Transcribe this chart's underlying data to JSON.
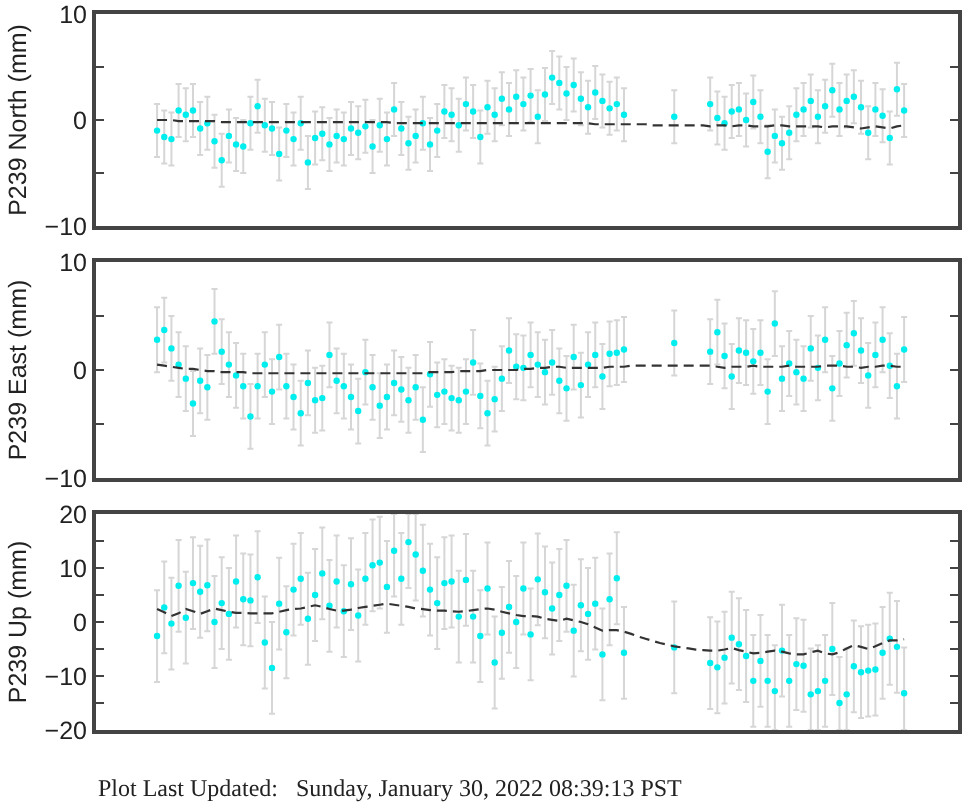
{
  "chart_data": [
    {
      "type": "scatter",
      "ylabel": "P239 North (mm)",
      "tick_labels": "y",
      "ylim": [
        -10,
        10
      ],
      "yticks": [
        -10,
        {
          "value": -5,
          "label": null
        },
        0,
        {
          "value": 5,
          "label": null
        },
        10
      ],
      "categories": [
        null,
        null,
        null,
        null,
        null,
        null,
        null,
        null,
        null,
        null,
        null,
        null,
        null,
        null,
        null,
        null,
        null,
        null,
        null,
        null,
        null,
        null,
        null,
        null,
        null,
        null,
        null,
        null,
        null,
        null,
        null,
        null,
        null,
        null,
        null,
        null,
        null,
        null,
        null,
        null,
        null,
        null,
        null,
        null,
        null,
        null,
        null,
        null,
        null,
        null,
        null,
        null,
        null,
        null,
        null,
        null,
        null,
        null,
        null,
        null,
        null,
        null,
        null,
        null,
        null,
        null,
        null,
        null,
        null,
        null,
        null,
        null,
        null,
        null,
        null,
        null,
        null,
        null,
        null,
        null,
        null,
        null,
        null,
        null,
        null,
        null,
        null,
        null,
        null,
        null,
        null,
        null,
        null,
        null,
        null,
        null,
        null,
        null,
        null,
        null,
        null,
        null,
        null,
        null,
        null,
        null,
        null,
        null,
        null,
        null,
        null,
        null,
        null,
        null,
        null,
        null,
        null,
        null,
        null,
        null
      ],
      "series": [
        {
          "color": "#00eeee",
          "marker": "circle",
          "values": [
            null,
            null,
            null,
            null,
            null,
            null,
            null,
            null,
            -1.0,
            -1.6,
            -1.8,
            0.9,
            0.5,
            0.9,
            -0.8,
            -0.3,
            -2.0,
            -3.8,
            -1.5,
            -2.3,
            -2.5,
            -0.3,
            1.3,
            -0.5,
            -0.8,
            -3.2,
            -1.0,
            -1.8,
            -0.3,
            -4.0,
            -1.7,
            -1.3,
            -2.3,
            -1.5,
            -1.8,
            -0.8,
            -1.2,
            -0.6,
            -2.5,
            -0.5,
            -1.8,
            1.0,
            -0.8,
            -2.2,
            -1.5,
            -0.3,
            -2.3,
            -1.0,
            0.8,
            0.5,
            -0.5,
            1.5,
            0.8,
            -1.6,
            1.2,
            0.5,
            2.0,
            1.0,
            2.2,
            1.5,
            2.3,
            0.3,
            2.4,
            4.0,
            3.5,
            2.5,
            3.3,
            2.0,
            1.2,
            2.6,
            1.8,
            1.1,
            1.5,
            0.5,
            null,
            null,
            null,
            null,
            null,
            null,
            0.3,
            null,
            null,
            null,
            null,
            1.5,
            0.2,
            -0.3,
            0.8,
            1.0,
            0.0,
            1.7,
            0.3,
            -3.0,
            -1.5,
            -2.2,
            -1.2,
            0.5,
            1.0,
            1.8,
            0.3,
            1.3,
            2.8,
            1.0,
            1.8,
            2.2,
            1.2,
            -1.2,
            1.0,
            0.4,
            -1.7,
            2.9,
            0.9,
            null,
            null,
            null,
            null,
            null,
            null,
            null
          ],
          "errors": [
            null,
            null,
            null,
            null,
            null,
            null,
            null,
            null,
            2.5,
            2.5,
            2.5,
            2.5,
            2.5,
            2.5,
            2.5,
            2.5,
            2.5,
            2.5,
            2.5,
            2.5,
            2.5,
            2.5,
            2.5,
            2.5,
            2.5,
            2.5,
            2.5,
            2.5,
            2.5,
            2.5,
            2.5,
            2.5,
            2.5,
            2.5,
            2.5,
            2.5,
            2.5,
            2.5,
            2.5,
            2.5,
            2.5,
            2.5,
            2.5,
            2.5,
            2.5,
            2.5,
            2.5,
            2.5,
            2.5,
            2.5,
            2.5,
            2.5,
            2.5,
            2.5,
            2.5,
            2.5,
            2.5,
            2.5,
            2.5,
            2.5,
            2.5,
            2.5,
            2.5,
            2.5,
            2.5,
            2.5,
            2.5,
            2.5,
            2.5,
            2.5,
            2.5,
            2.5,
            2.5,
            2.5,
            null,
            null,
            null,
            null,
            null,
            null,
            2.5,
            null,
            null,
            null,
            null,
            2.5,
            2.5,
            2.5,
            2.5,
            2.5,
            2.5,
            2.5,
            2.5,
            2.5,
            2.5,
            2.5,
            2.5,
            2.5,
            2.5,
            2.5,
            2.5,
            2.5,
            2.5,
            2.5,
            2.5,
            2.5,
            2.5,
            2.5,
            2.5,
            2.5,
            2.5,
            2.5,
            2.5,
            null,
            null,
            null,
            null,
            null,
            null,
            null
          ]
        },
        {
          "type": "line",
          "color": "#333333",
          "marker": "none",
          "line_style": "dashed",
          "values": [
            null,
            null,
            null,
            null,
            null,
            null,
            null,
            null,
            0.0,
            0.0,
            0.0,
            -0.1,
            -0.1,
            -0.1,
            -0.1,
            -0.1,
            -0.1,
            -0.2,
            -0.2,
            -0.2,
            -0.2,
            -0.2,
            -0.2,
            -0.2,
            -0.2,
            -0.2,
            -0.2,
            -0.2,
            -0.2,
            -0.2,
            -0.2,
            -0.2,
            -0.2,
            -0.2,
            -0.2,
            -0.2,
            -0.2,
            -0.2,
            -0.2,
            -0.2,
            -0.2,
            -0.3,
            -0.3,
            -0.3,
            -0.3,
            -0.3,
            -0.3,
            -0.3,
            -0.3,
            -0.3,
            -0.3,
            -0.3,
            -0.3,
            -0.3,
            -0.3,
            -0.3,
            -0.3,
            -0.3,
            -0.3,
            -0.3,
            -0.3,
            -0.3,
            -0.3,
            -0.3,
            -0.3,
            -0.3,
            -0.3,
            -0.3,
            -0.3,
            -0.4,
            -0.4,
            -0.4,
            -0.4,
            -0.4,
            -0.4,
            -0.4,
            -0.4,
            -0.5,
            -0.5,
            -0.5,
            -0.5,
            -0.5,
            -0.5,
            -0.5,
            -0.5,
            -0.6,
            -0.5,
            -0.5,
            -0.6,
            -0.5,
            -0.5,
            -0.6,
            -0.6,
            -0.6,
            -0.5,
            -0.5,
            -0.6,
            -0.6,
            -0.6,
            -0.6,
            -0.6,
            -0.7,
            -0.6,
            -0.6,
            -0.6,
            -0.7,
            -0.8,
            -0.7,
            -0.6,
            -0.7,
            -0.8,
            -0.6,
            -0.5,
            null,
            null,
            null,
            null,
            null,
            null,
            null
          ]
        }
      ]
    },
    {
      "type": "scatter",
      "ylabel": "P239 East (mm)",
      "tick_labels": "y",
      "ylim": [
        -10,
        10
      ],
      "yticks": [
        -10,
        {
          "value": -5,
          "label": null
        },
        0,
        {
          "value": 5,
          "label": null
        },
        10
      ],
      "categories": [
        null,
        null,
        null,
        null,
        null,
        null,
        null,
        null,
        null,
        null,
        null,
        null,
        null,
        null,
        null,
        null,
        null,
        null,
        null,
        null,
        null,
        null,
        null,
        null,
        null,
        null,
        null,
        null,
        null,
        null,
        null,
        null,
        null,
        null,
        null,
        null,
        null,
        null,
        null,
        null,
        null,
        null,
        null,
        null,
        null,
        null,
        null,
        null,
        null,
        null,
        null,
        null,
        null,
        null,
        null,
        null,
        null,
        null,
        null,
        null,
        null,
        null,
        null,
        null,
        null,
        null,
        null,
        null,
        null,
        null,
        null,
        null,
        null,
        null,
        null,
        null,
        null,
        null,
        null,
        null,
        null,
        null,
        null,
        null,
        null,
        null,
        null,
        null,
        null,
        null,
        null,
        null,
        null,
        null,
        null,
        null,
        null,
        null,
        null,
        null,
        null,
        null,
        null,
        null,
        null,
        null,
        null,
        null,
        null,
        null,
        null,
        null,
        null,
        null,
        null,
        null,
        null,
        null,
        null,
        null
      ],
      "series": [
        {
          "color": "#00eeee",
          "marker": "circle",
          "values": [
            null,
            null,
            null,
            null,
            null,
            null,
            null,
            null,
            2.8,
            3.7,
            2.0,
            0.5,
            -0.8,
            -3.1,
            -1.0,
            -1.6,
            4.5,
            1.7,
            0.5,
            -0.5,
            -1.5,
            -4.3,
            -1.5,
            0.5,
            -2.0,
            1.2,
            -1.5,
            -2.5,
            -4.0,
            -1.2,
            -2.8,
            -2.6,
            1.4,
            -1.0,
            -1.5,
            -2.5,
            -3.8,
            -0.2,
            -1.6,
            -3.3,
            -2.5,
            -1.2,
            -1.8,
            -2.8,
            -1.6,
            -4.6,
            -0.4,
            -2.3,
            -2.0,
            -2.6,
            -2.8,
            -2.0,
            0.7,
            -2.4,
            -4.0,
            -2.7,
            -0.8,
            1.8,
            0.3,
            0.2,
            1.4,
            0.5,
            -0.2,
            0.7,
            -1.0,
            -1.7,
            1.2,
            -1.4,
            0.5,
            1.4,
            -0.6,
            1.5,
            1.6,
            1.9,
            null,
            null,
            null,
            null,
            null,
            null,
            2.5,
            null,
            null,
            null,
            null,
            1.7,
            3.5,
            1.3,
            -0.6,
            1.8,
            1.6,
            0.8,
            1.6,
            -2.0,
            4.3,
            -0.8,
            0.6,
            -0.2,
            -0.8,
            2.0,
            0.2,
            2.8,
            -1.7,
            0.6,
            2.3,
            3.4,
            1.8,
            -0.5,
            1.4,
            2.8,
            0.4,
            -1.5,
            1.9,
            null,
            null,
            null,
            null,
            null,
            null,
            null
          ],
          "errors": [
            null,
            null,
            null,
            null,
            null,
            null,
            null,
            null,
            3,
            3,
            3,
            3,
            3,
            3,
            3,
            3,
            3,
            3,
            3,
            3,
            3,
            3,
            3,
            3,
            3,
            3,
            3,
            3,
            3,
            3,
            3,
            3,
            3,
            3,
            3,
            3,
            3,
            3,
            3,
            3,
            3,
            3,
            3,
            3,
            3,
            3,
            3,
            3,
            3,
            3,
            3,
            3,
            3,
            3,
            3,
            3,
            3,
            3,
            3,
            3,
            3,
            3,
            3,
            3,
            3,
            3,
            3,
            3,
            3,
            3,
            3,
            3,
            3,
            3,
            null,
            null,
            null,
            null,
            null,
            null,
            3,
            null,
            null,
            null,
            null,
            3,
            3,
            3,
            3,
            3,
            3,
            3,
            3,
            3,
            3,
            3,
            3,
            3,
            3,
            3,
            3,
            3,
            3,
            3,
            3,
            3,
            3,
            3,
            3,
            3,
            3,
            3,
            3,
            null,
            null,
            null,
            null,
            null,
            null,
            null
          ]
        },
        {
          "type": "line",
          "color": "#333333",
          "marker": "none",
          "line_style": "dashed",
          "values": [
            null,
            null,
            null,
            null,
            null,
            null,
            null,
            null,
            0.5,
            0.4,
            0.3,
            0.2,
            0.1,
            0.1,
            0.0,
            -0.1,
            -0.1,
            -0.2,
            -0.2,
            -0.2,
            -0.2,
            -0.3,
            -0.3,
            -0.3,
            -0.3,
            -0.3,
            -0.3,
            -0.3,
            -0.3,
            -0.3,
            -0.3,
            -0.3,
            -0.3,
            -0.3,
            -0.3,
            -0.3,
            -0.3,
            -0.3,
            -0.3,
            -0.3,
            -0.3,
            -0.3,
            -0.3,
            -0.3,
            -0.3,
            -0.3,
            -0.2,
            -0.2,
            -0.2,
            -0.2,
            -0.1,
            -0.1,
            -0.1,
            -0.1,
            0.0,
            0.0,
            0.0,
            0.0,
            0.0,
            0.1,
            0.1,
            0.2,
            0.2,
            0.3,
            0.3,
            0.2,
            0.2,
            0.2,
            0.2,
            0.2,
            0.2,
            0.3,
            0.3,
            0.3,
            0.4,
            0.4,
            0.4,
            0.4,
            0.4,
            0.4,
            0.4,
            0.4,
            0.4,
            0.4,
            0.4,
            0.4,
            0.3,
            0.2,
            0.3,
            0.3,
            0.3,
            0.4,
            0.3,
            0.3,
            0.3,
            0.3,
            0.4,
            0.3,
            0.3,
            0.3,
            0.3,
            0.4,
            0.4,
            0.4,
            0.3,
            0.3,
            0.2,
            0.3,
            0.3,
            0.4,
            0.4,
            0.3,
            0.3,
            null,
            null,
            null,
            null,
            null,
            null,
            null
          ]
        }
      ]
    },
    {
      "type": "scatter",
      "ylabel": "P239 Up (mm)",
      "tick_labels": "y",
      "ylim": [
        -20,
        20
      ],
      "yticks": [
        -20,
        {
          "value": -15,
          "label": null
        },
        -10,
        {
          "value": -5,
          "label": null
        },
        0,
        {
          "value": 5,
          "label": null
        },
        10,
        {
          "value": 15,
          "label": null
        },
        20
      ],
      "annotations": [
        "Plot Last Updated:   Sunday, January 30, 2022 08:39:13 PST"
      ],
      "categories": [
        null,
        null,
        null,
        null,
        null,
        null,
        null,
        null,
        null,
        null,
        null,
        null,
        null,
        null,
        null,
        null,
        null,
        null,
        null,
        null,
        null,
        null,
        null,
        null,
        null,
        null,
        null,
        null,
        null,
        null,
        null,
        null,
        null,
        null,
        null,
        null,
        null,
        null,
        null,
        null,
        null,
        null,
        null,
        null,
        null,
        null,
        null,
        null,
        null,
        null,
        null,
        null,
        null,
        null,
        null,
        null,
        null,
        null,
        null,
        null,
        null,
        null,
        null,
        null,
        null,
        null,
        null,
        null,
        null,
        null,
        null,
        null,
        null,
        null,
        null,
        null,
        null,
        null,
        null,
        null,
        null,
        null,
        null,
        null,
        null,
        null,
        null,
        null,
        null,
        null,
        null,
        null,
        null,
        null,
        null,
        null,
        null,
        null,
        null,
        null,
        null,
        null,
        null,
        null,
        null,
        null,
        null,
        null,
        null,
        null,
        null,
        null,
        null,
        null,
        null,
        null,
        null,
        null,
        null,
        null
      ],
      "series": [
        {
          "color": "#00eeee",
          "marker": "circle",
          "values": [
            null,
            null,
            null,
            null,
            null,
            null,
            null,
            null,
            -2.6,
            2.7,
            -0.3,
            6.7,
            0.8,
            7.2,
            5.6,
            6.8,
            0.0,
            3.5,
            1.5,
            7.5,
            4.2,
            4.0,
            8.3,
            -3.8,
            -8.5,
            3.4,
            -1.9,
            6.0,
            8.0,
            0.6,
            5.0,
            9.0,
            3.0,
            7.5,
            2.0,
            7.0,
            1.2,
            8.0,
            10.5,
            11.0,
            6.5,
            13.2,
            8.0,
            14.8,
            12.5,
            9.5,
            6.0,
            3.5,
            7.2,
            7.5,
            1.0,
            7.8,
            1.0,
            -2.6,
            6.2,
            -7.5,
            -2.0,
            2.8,
            0.0,
            6.2,
            -2.3,
            7.9,
            5.5,
            2.5,
            5.0,
            6.7,
            -1.6,
            3.1,
            1.5,
            3.4,
            -6.0,
            4.2,
            8.1,
            -5.7,
            null,
            null,
            null,
            null,
            null,
            null,
            -4.7,
            null,
            null,
            null,
            null,
            -7.6,
            -8.4,
            -6.6,
            -2.9,
            -4.1,
            -6.3,
            -10.9,
            -7.2,
            -10.9,
            -12.8,
            -5.3,
            -10.9,
            -7.8,
            -8.1,
            -13.4,
            -12.8,
            -10.9,
            -5.0,
            -15.0,
            -13.4,
            -8.2,
            -9.3,
            -9.0,
            -8.8,
            -5.7,
            -3.1,
            -4.6,
            -13.2,
            null,
            null,
            null,
            null,
            null,
            null,
            null
          ],
          "errors": [
            null,
            null,
            null,
            null,
            null,
            null,
            null,
            null,
            8.5,
            8.5,
            8.5,
            8.5,
            8.5,
            8.5,
            8.5,
            8.5,
            8.5,
            8.5,
            8.5,
            8.5,
            8.5,
            8.5,
            8.5,
            8.5,
            8.5,
            8.5,
            8.5,
            8.5,
            8.5,
            8.5,
            8.5,
            8.5,
            8.5,
            8.5,
            8.5,
            8.5,
            8.5,
            8.5,
            8.5,
            8.5,
            8.5,
            [
              4.7,
              20
            ],
            8.5,
            [
              6.3,
              20
            ],
            [
              4.0,
              20
            ],
            8.5,
            8.5,
            8.5,
            8.5,
            8.5,
            8.5,
            8.5,
            8.5,
            8.5,
            8.5,
            8.5,
            8.5,
            8.5,
            8.5,
            8.5,
            8.5,
            8.5,
            8.5,
            8.5,
            8.5,
            8.5,
            8.5,
            8.5,
            8.5,
            8.5,
            8.5,
            8.5,
            8.5,
            8.5,
            null,
            null,
            null,
            null,
            null,
            null,
            8.5,
            null,
            null,
            null,
            null,
            8.5,
            8.5,
            8.5,
            8.5,
            8.5,
            8.5,
            8.5,
            8.5,
            8.5,
            [
              -20,
              -4.3
            ],
            8.5,
            8.5,
            8.5,
            8.5,
            [
              -20,
              -4.9
            ],
            [
              -20,
              -4.3
            ],
            8.5,
            8.5,
            [
              -20,
              -6.5
            ],
            [
              -20,
              -4.9
            ],
            8.5,
            8.5,
            8.5,
            8.5,
            8.5,
            8.5,
            8.5,
            [
              -20,
              -4.7
            ],
            null,
            null,
            null,
            null,
            null,
            null,
            null
          ]
        },
        {
          "type": "line",
          "color": "#333333",
          "marker": "none",
          "line_style": "dashed",
          "values": [
            null,
            null,
            null,
            null,
            null,
            null,
            null,
            null,
            2.4,
            1.8,
            1.1,
            1.6,
            2.4,
            2.0,
            1.5,
            2.0,
            2.5,
            2.2,
            1.9,
            1.7,
            1.7,
            1.6,
            1.6,
            1.6,
            1.6,
            1.9,
            2.2,
            2.4,
            2.5,
            2.8,
            3.1,
            2.8,
            2.4,
            2.1,
            2.1,
            2.3,
            2.6,
            2.8,
            3.0,
            3.2,
            3.4,
            3.2,
            3.0,
            2.8,
            2.5,
            2.4,
            2.2,
            2.1,
            2.1,
            2.0,
            1.9,
            2.0,
            2.2,
            2.4,
            2.5,
            2.3,
            1.9,
            1.6,
            1.3,
            1.1,
            1.1,
            1.0,
            0.6,
            0.4,
            0.2,
            0.6,
            0.3,
            0.0,
            -0.4,
            -1.0,
            -1.6,
            -1.5,
            -1.5,
            -1.8,
            -2.2,
            -2.7,
            -3.1,
            -3.5,
            -3.9,
            -4.2,
            -4.5,
            -4.7,
            -4.9,
            -5.1,
            -5.2,
            -5.3,
            -5.3,
            -5.1,
            -4.8,
            -5.2,
            -5.5,
            -5.8,
            -5.7,
            -5.5,
            -5.3,
            -5.5,
            -5.8,
            -6.0,
            -6.0,
            -5.6,
            -5.3,
            -5.8,
            -6.0,
            -5.6,
            -4.9,
            -4.3,
            -4.6,
            -5.0,
            -4.5,
            -3.9,
            -3.4,
            -3.4,
            -3.2,
            null,
            null,
            null,
            null,
            null,
            null,
            null
          ]
        }
      ]
    }
  ]
}
